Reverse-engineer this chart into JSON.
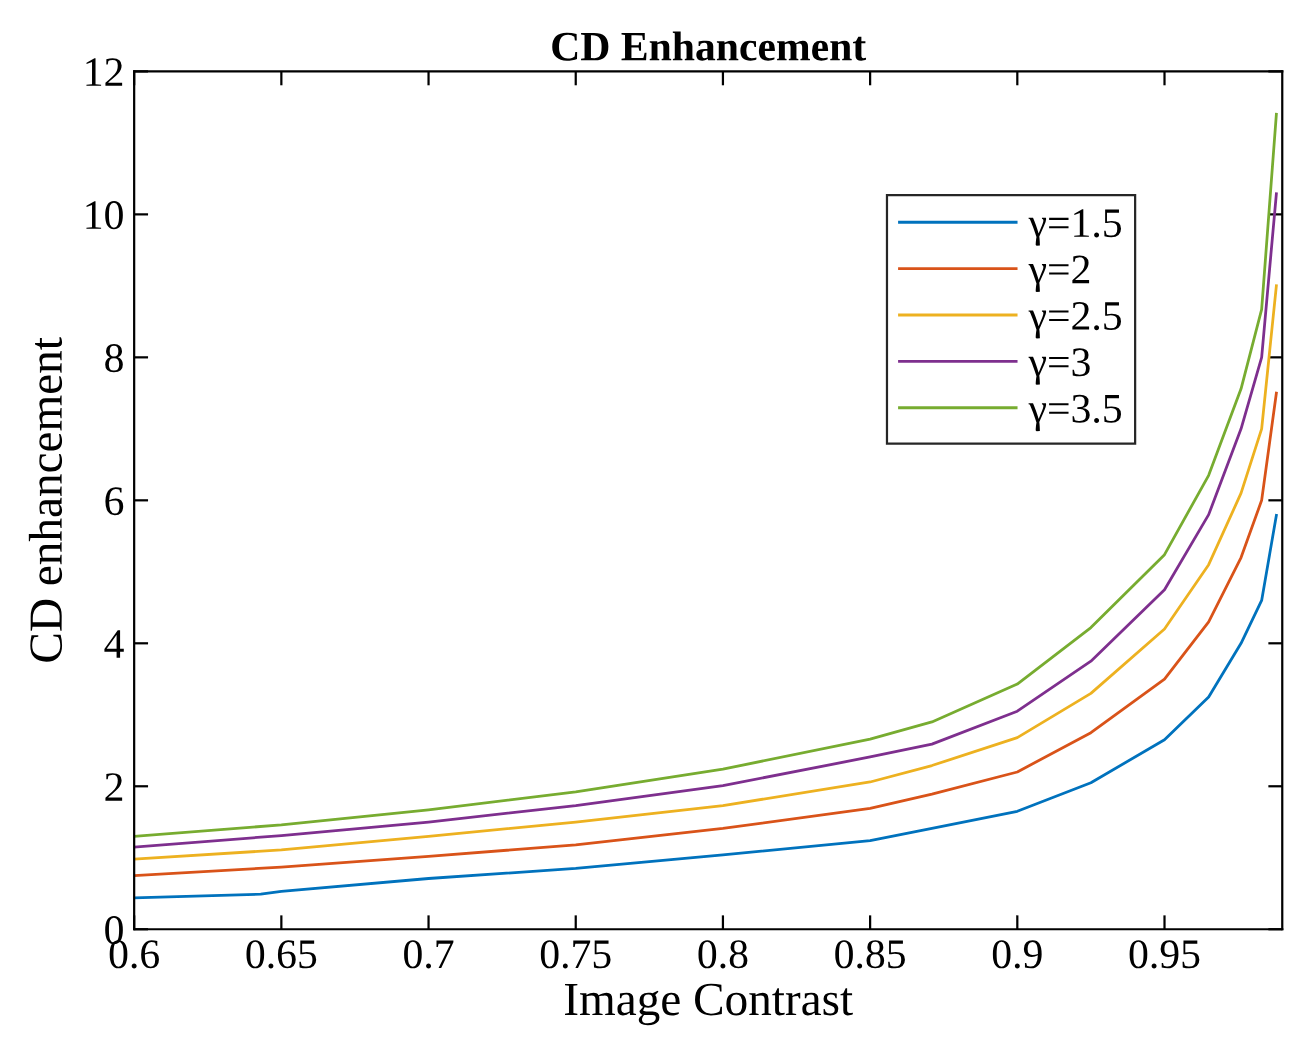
{
  "chart_data": {
    "type": "line",
    "title": "CD Enhancement",
    "xlabel": "Image Contrast",
    "ylabel": "CD enhancement",
    "xlim": [
      0.6,
      0.99
    ],
    "xticks": [
      0.6,
      0.65,
      0.7,
      0.75,
      0.8,
      0.85,
      0.9,
      0.95
    ],
    "ylim": [
      0,
      12
    ],
    "yticks": [
      0,
      2,
      4,
      6,
      8,
      10,
      12
    ],
    "grid": false,
    "legend": "top right",
    "marker": "none",
    "line_style": "solid",
    "series": [
      {
        "name": "γ=1.5",
        "color": "#0072bd",
        "x": [
          0.6,
          0.643,
          0.65,
          0.7,
          0.75,
          0.8,
          0.85,
          0.871,
          0.9,
          0.925,
          0.95,
          0.965,
          0.976,
          0.983,
          0.988
        ],
        "values": [
          0.44,
          0.49,
          0.53,
          0.71,
          0.85,
          1.04,
          1.24,
          1.41,
          1.65,
          2.05,
          2.65,
          3.25,
          4.0,
          4.6,
          5.79
        ]
      },
      {
        "name": "γ=2",
        "color": "#d95319",
        "x": [
          0.6,
          0.65,
          0.7,
          0.75,
          0.8,
          0.85,
          0.871,
          0.9,
          0.925,
          0.95,
          0.965,
          0.976,
          0.983,
          0.988
        ],
        "values": [
          0.75,
          0.87,
          1.02,
          1.18,
          1.41,
          1.69,
          1.89,
          2.2,
          2.75,
          3.5,
          4.3,
          5.2,
          6.0,
          7.5
        ]
      },
      {
        "name": "γ=2.5",
        "color": "#edb120",
        "x": [
          0.6,
          0.65,
          0.7,
          0.75,
          0.8,
          0.85,
          0.871,
          0.9,
          0.925,
          0.95,
          0.965,
          0.976,
          0.983,
          0.988
        ],
        "values": [
          0.98,
          1.11,
          1.3,
          1.5,
          1.73,
          2.06,
          2.29,
          2.68,
          3.3,
          4.2,
          5.1,
          6.1,
          7.0,
          9.0
        ]
      },
      {
        "name": "γ=3",
        "color": "#7e2f8e",
        "x": [
          0.6,
          0.65,
          0.7,
          0.75,
          0.8,
          0.85,
          0.871,
          0.9,
          0.925,
          0.95,
          0.965,
          0.976,
          0.983,
          0.988
        ],
        "values": [
          1.15,
          1.31,
          1.5,
          1.73,
          2.01,
          2.41,
          2.59,
          3.05,
          3.75,
          4.75,
          5.8,
          7.0,
          8.0,
          10.29
        ]
      },
      {
        "name": "γ=3.5",
        "color": "#77ac30",
        "x": [
          0.6,
          0.65,
          0.7,
          0.75,
          0.8,
          0.85,
          0.871,
          0.9,
          0.925,
          0.95,
          0.965,
          0.976,
          0.983,
          0.988
        ],
        "values": [
          1.3,
          1.46,
          1.67,
          1.92,
          2.24,
          2.66,
          2.9,
          3.43,
          4.22,
          5.24,
          6.35,
          7.56,
          8.67,
          11.4
        ]
      }
    ]
  }
}
